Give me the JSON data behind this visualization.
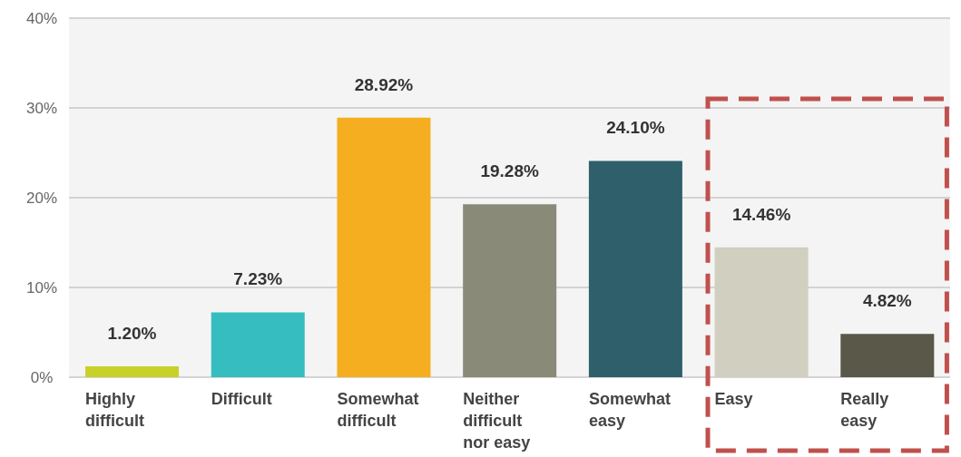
{
  "chart_data": {
    "type": "bar",
    "categories": [
      "Highly difficult",
      "Difficult",
      "Somewhat difficult",
      "Neither difficult nor easy",
      "Somewhat easy",
      "Easy",
      "Really easy"
    ],
    "values": [
      1.2,
      7.23,
      28.92,
      19.28,
      24.1,
      14.46,
      4.82
    ],
    "colors": [
      "#c8d12a",
      "#35bdbf",
      "#f5ae1f",
      "#8a8a78",
      "#2e5f6b",
      "#d0cfc0",
      "#5a5849"
    ],
    "value_labels": [
      "1.20%",
      "7.23%",
      "28.92%",
      "19.28%",
      "24.10%",
      "14.46%",
      "4.82%"
    ],
    "ylim": [
      0,
      40
    ],
    "yticks": [
      {
        "value": 0,
        "label": "0%"
      },
      {
        "value": 10,
        "label": "10%"
      },
      {
        "value": 20,
        "label": "20%"
      },
      {
        "value": 30,
        "label": "30%"
      },
      {
        "value": 40,
        "label": "40%"
      }
    ],
    "grid": "y"
  }
}
